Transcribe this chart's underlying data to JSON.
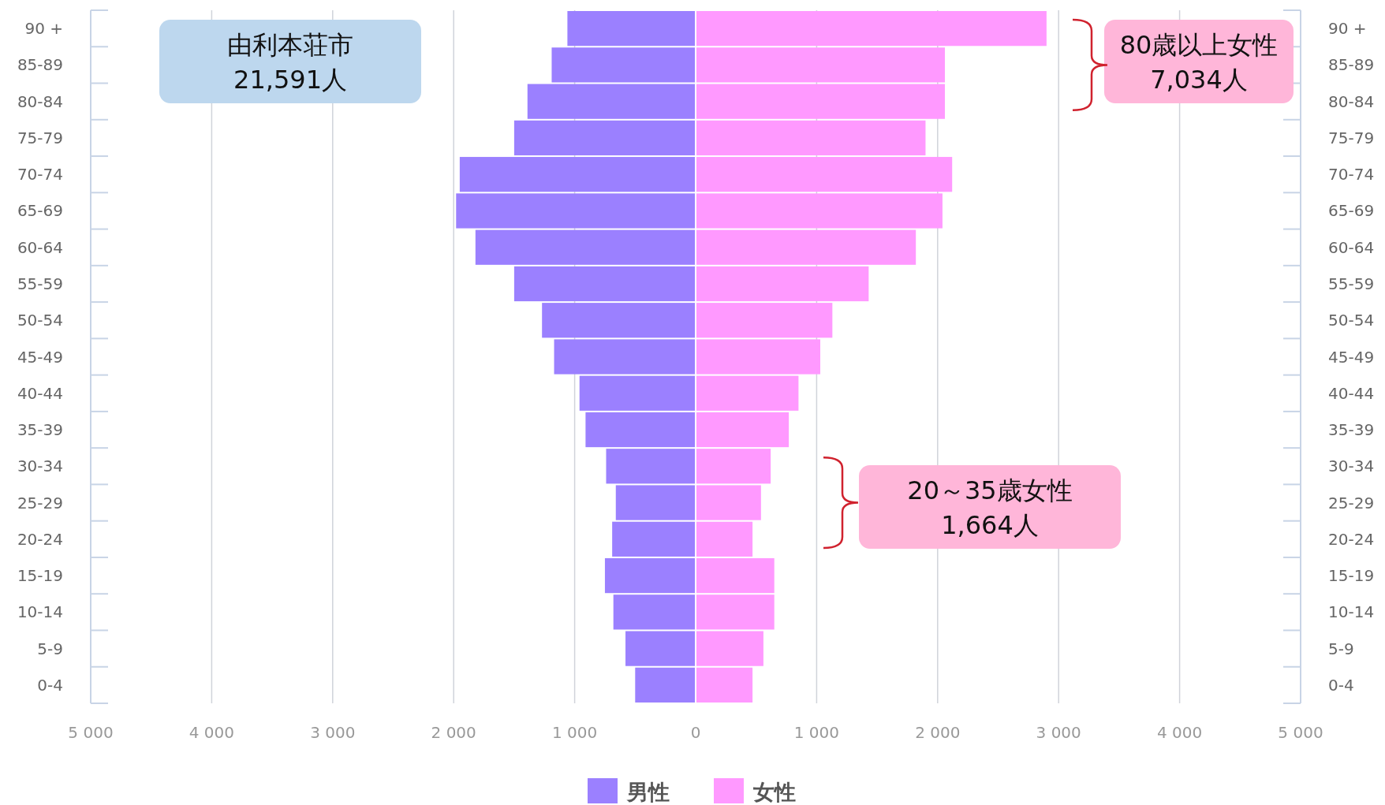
{
  "chart_data": {
    "type": "bar",
    "orientation": "horizontal",
    "stacked": true,
    "categories": [
      "90 +",
      "85-89",
      "80-84",
      "75-79",
      "70-74",
      "65-69",
      "60-64",
      "55-59",
      "50-54",
      "45-49",
      "40-44",
      "35-39",
      "30-34",
      "25-29",
      "20-24",
      "15-19",
      "10-14",
      "5-9",
      "0-4"
    ],
    "series": [
      {
        "name": "男性",
        "color": "#9b80ff",
        "values": [
          -1060,
          -1190,
          -1390,
          -1500,
          -1950,
          -1980,
          -1820,
          -1500,
          -1270,
          -1170,
          -960,
          -910,
          -740,
          -660,
          -690,
          -750,
          -680,
          -580,
          -500
        ]
      },
      {
        "name": "女性",
        "color": "#ff99ff",
        "values": [
          2900,
          2060,
          2060,
          1900,
          2120,
          2040,
          1820,
          1430,
          1130,
          1030,
          850,
          770,
          620,
          540,
          470,
          650,
          650,
          560,
          470
        ]
      }
    ],
    "xlim": [
      -5000,
      5000
    ],
    "xticks": [
      {
        "value": -5000,
        "label": "5 000"
      },
      {
        "value": -4000,
        "label": "4 000"
      },
      {
        "value": -3000,
        "label": "3 000"
      },
      {
        "value": -2000,
        "label": "2 000"
      },
      {
        "value": -1000,
        "label": "1 000"
      },
      0,
      {
        "value": 1000,
        "label": "1 000"
      },
      {
        "value": 2000,
        "label": "2 000"
      },
      {
        "value": 3000,
        "label": "3 000"
      },
      {
        "value": 4000,
        "label": "4 000"
      },
      {
        "value": 5000,
        "label": "5 000"
      }
    ],
    "grid": "x",
    "legend": "bottom",
    "annotations": [
      "由利本荘市\n21,591人",
      "80歳以上女性\n7,034人",
      "20～35歳女性\n1,664人"
    ]
  }
}
